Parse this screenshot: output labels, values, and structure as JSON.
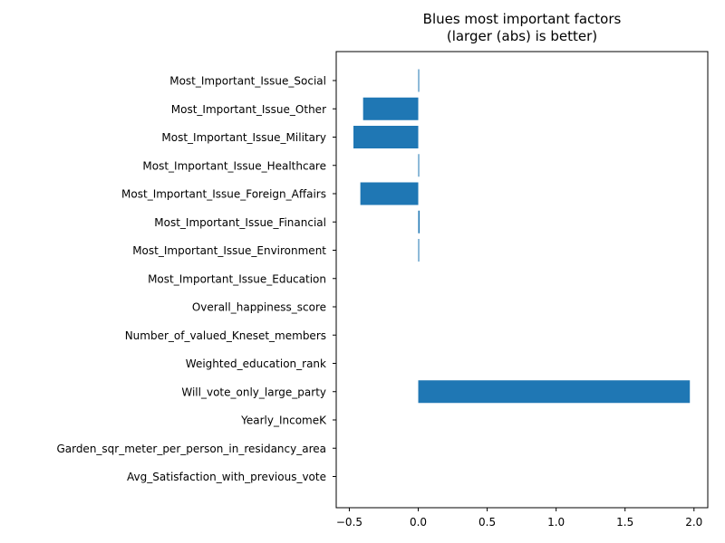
{
  "chart_data": {
    "type": "bar",
    "orientation": "horizontal",
    "title": "Blues most important factors\n(larger (abs) is better)",
    "title_lines": [
      "Blues most important factors",
      "(larger (abs) is better)"
    ],
    "xlabel": "",
    "ylabel": "",
    "xlim": [
      -0.595,
      2.1
    ],
    "x_ticks": [
      -0.5,
      0.0,
      0.5,
      1.0,
      1.5,
      2.0
    ],
    "x_tick_labels": [
      "−0.5",
      "0.0",
      "0.5",
      "1.0",
      "1.5",
      "2.0"
    ],
    "grid": false,
    "bar_color": "#1f77b4",
    "categories": [
      "Most_Important_Issue_Social",
      "Most_Important_Issue_Other",
      "Most_Important_Issue_Military",
      "Most_Important_Issue_Healthcare",
      "Most_Important_Issue_Foreign_Affairs",
      "Most_Important_Issue_Financial",
      "Most_Important_Issue_Environment",
      "Most_Important_Issue_Education",
      "Overall_happiness_score",
      "Number_of_valued_Kneset_members",
      "Weighted_education_rank",
      "Will_vote_only_large_party",
      "Yearly_IncomeK",
      "Garden_sqr_meter_per_person_in_residancy_area",
      "Avg_Satisfaction_with_previous_vote"
    ],
    "values": [
      0.005,
      -0.4,
      -0.47,
      0.005,
      -0.42,
      0.01,
      0.005,
      0,
      0,
      0,
      0,
      1.97,
      0,
      0,
      0
    ]
  }
}
